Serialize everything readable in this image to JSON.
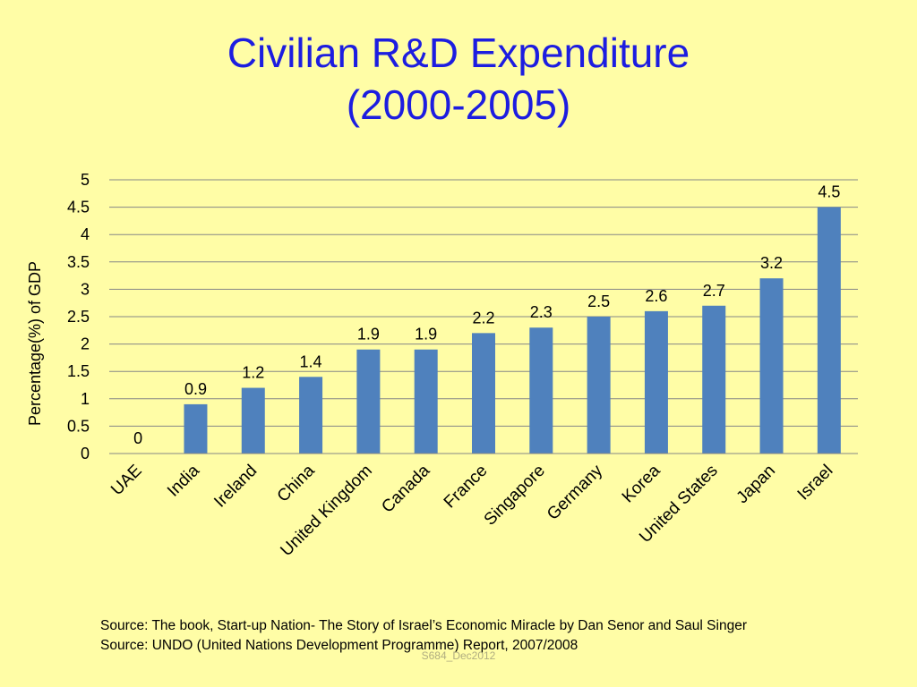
{
  "slide": {
    "title_line1": "Civilian R&D Expenditure",
    "title_line2": "(2000-2005)",
    "sources": [
      "Source: The book, Start-up Nation- The Story of Israel’s Economic Miracle by Dan Senor and Saul Singer",
      "Source: UNDO (United Nations Development Programme) Report, 2007/2008"
    ],
    "footer": "S684_Dec2012"
  },
  "colors": {
    "background": "#FFFDA6",
    "title": "#1D1DE0",
    "bar": "#4F81BD",
    "gridline": "#868686",
    "footer": "#B0AD80"
  },
  "chart_data": {
    "type": "bar",
    "title": "",
    "xlabel": "",
    "ylabel": "Percentage(%) of GDP",
    "ylim": [
      0,
      5
    ],
    "yticks": [
      "0",
      "0.5",
      "1",
      "1.5",
      "2",
      "2.5",
      "3",
      "3.5",
      "4",
      "4.5",
      "5"
    ],
    "grid": true,
    "legend": "none",
    "categories": [
      "UAE",
      "India",
      "Ireland",
      "China",
      "United Kingdom",
      "Canada",
      "France",
      "Singapore",
      "Germany",
      "Korea",
      "United States",
      "Japan",
      "Israel"
    ],
    "values": [
      0,
      0.9,
      1.2,
      1.4,
      1.9,
      1.9,
      2.2,
      2.3,
      2.5,
      2.6,
      2.7,
      3.2,
      4.5
    ],
    "data_labels": [
      "0",
      "0.9",
      "1.2",
      "1.4",
      "1.9",
      "1.9",
      "2.2",
      "2.3",
      "2.5",
      "2.6",
      "2.7",
      "3.2",
      "4.5"
    ]
  }
}
